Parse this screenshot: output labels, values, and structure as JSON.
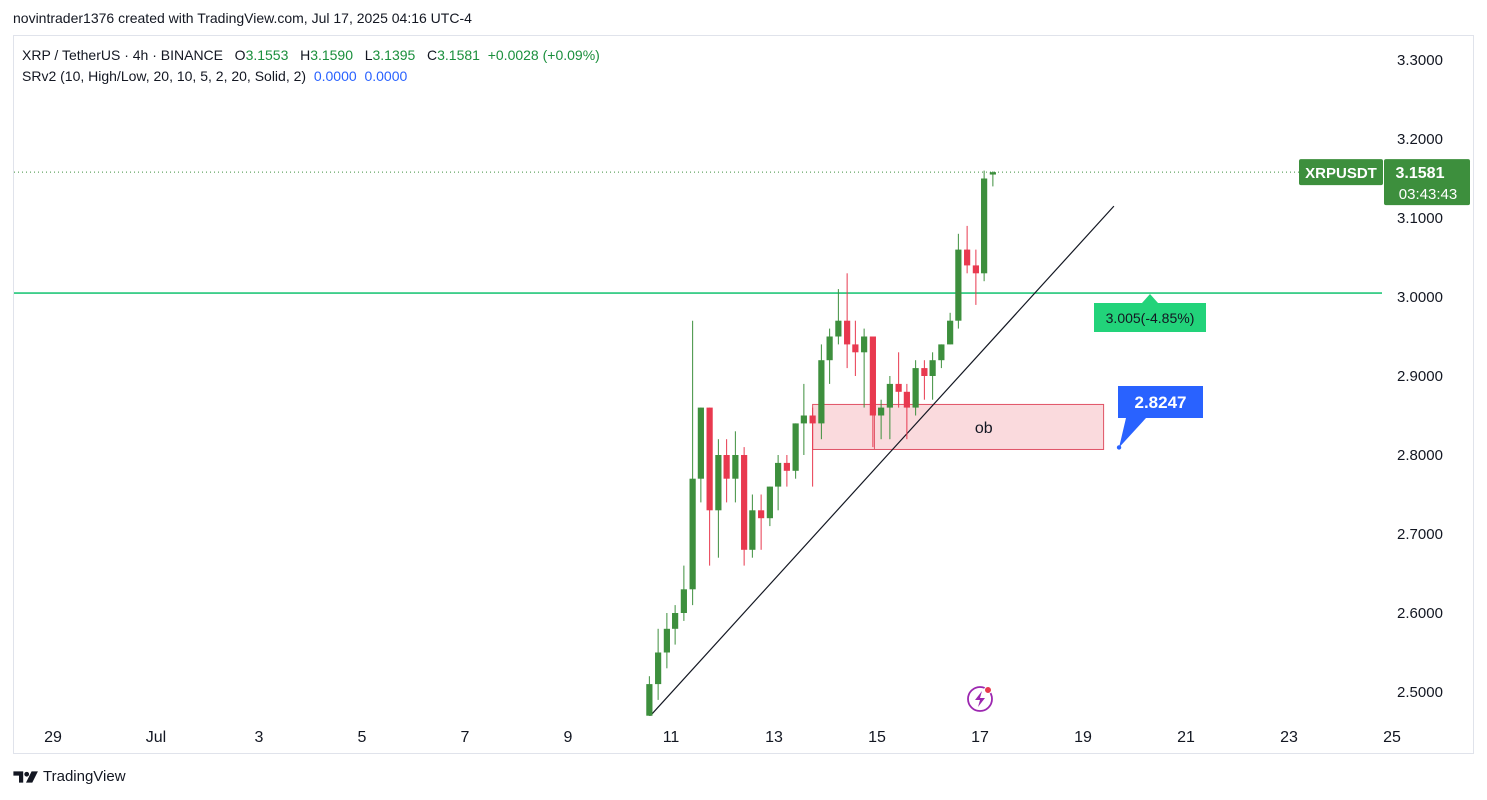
{
  "attribution": "novintrader1376 created with TradingView.com, Jul 17, 2025 04:16 UTC-4",
  "legend": {
    "symbol": "XRP / TetherUS · 4h · BINANCE",
    "o_label": "O",
    "o_value": "3.1553",
    "h_label": "H",
    "h_value": "3.1590",
    "l_label": "L",
    "l_value": "3.1395",
    "c_label": "C",
    "c_value": "3.1581",
    "change": "+0.0028 (+0.09%)",
    "indicator": "SRv2 (10, High/Low, 20, 10, 5, 2, 20, Solid, 2)",
    "ind_value1": "0.0000",
    "ind_value2": "0.0000"
  },
  "colors": {
    "up": "#3d8f3d",
    "down": "#e8394f",
    "level": "#22c77a",
    "ob_fill": "#fadadd",
    "ob_border": "#e05265",
    "price_tag": "#3d8f3d",
    "callout": "#2962ff",
    "level_label": "#22d37a"
  },
  "footer": {
    "brand": "TradingView"
  },
  "chart_data": {
    "type": "candlestick",
    "y_axis": {
      "min": 2.47,
      "max": 3.33,
      "ticks": [
        "3.3000",
        "3.2000",
        "3.1000",
        "3.0000",
        "2.9000",
        "2.8000",
        "2.7000",
        "2.6000",
        "2.5000"
      ],
      "tick_values": [
        3.3,
        3.2,
        3.1,
        3.0,
        2.9,
        2.8,
        2.7,
        2.6,
        2.5
      ]
    },
    "x_axis": {
      "ticks": [
        "29",
        "Jul",
        "3",
        "5",
        "7",
        "9",
        "11",
        "13",
        "15",
        "17",
        "19",
        "21",
        "23",
        "25"
      ],
      "tick_days": [
        -2,
        0,
        2,
        4,
        6,
        8,
        10,
        12,
        14,
        16,
        18,
        20,
        22,
        24
      ],
      "min_day": -2.0,
      "max_day": 24.05
    },
    "candles": [
      {
        "t": 9.58,
        "o": 2.47,
        "h": 2.52,
        "l": 2.46,
        "c": 2.51
      },
      {
        "t": 9.75,
        "o": 2.51,
        "h": 2.58,
        "l": 2.49,
        "c": 2.55
      },
      {
        "t": 9.92,
        "o": 2.55,
        "h": 2.6,
        "l": 2.53,
        "c": 2.58
      },
      {
        "t": 10.08,
        "o": 2.58,
        "h": 2.61,
        "l": 2.56,
        "c": 2.6
      },
      {
        "t": 10.25,
        "o": 2.6,
        "h": 2.66,
        "l": 2.59,
        "c": 2.63
      },
      {
        "t": 10.42,
        "o": 2.63,
        "h": 2.97,
        "l": 2.61,
        "c": 2.77
      },
      {
        "t": 10.58,
        "o": 2.77,
        "h": 2.86,
        "l": 2.74,
        "c": 2.86
      },
      {
        "t": 10.75,
        "o": 2.86,
        "h": 2.86,
        "l": 2.66,
        "c": 2.73
      },
      {
        "t": 10.92,
        "o": 2.73,
        "h": 2.82,
        "l": 2.67,
        "c": 2.8
      },
      {
        "t": 11.08,
        "o": 2.8,
        "h": 2.82,
        "l": 2.74,
        "c": 2.77
      },
      {
        "t": 11.25,
        "o": 2.77,
        "h": 2.83,
        "l": 2.74,
        "c": 2.8
      },
      {
        "t": 11.42,
        "o": 2.8,
        "h": 2.81,
        "l": 2.66,
        "c": 2.68
      },
      {
        "t": 11.58,
        "o": 2.68,
        "h": 2.75,
        "l": 2.67,
        "c": 2.73
      },
      {
        "t": 11.75,
        "o": 2.73,
        "h": 2.75,
        "l": 2.68,
        "c": 2.72
      },
      {
        "t": 11.92,
        "o": 2.72,
        "h": 2.76,
        "l": 2.71,
        "c": 2.76
      },
      {
        "t": 12.08,
        "o": 2.76,
        "h": 2.8,
        "l": 2.73,
        "c": 2.79
      },
      {
        "t": 12.25,
        "o": 2.79,
        "h": 2.8,
        "l": 2.76,
        "c": 2.78
      },
      {
        "t": 12.42,
        "o": 2.78,
        "h": 2.84,
        "l": 2.77,
        "c": 2.84
      },
      {
        "t": 12.58,
        "o": 2.84,
        "h": 2.89,
        "l": 2.8,
        "c": 2.85
      },
      {
        "t": 12.75,
        "o": 2.85,
        "h": 2.86,
        "l": 2.76,
        "c": 2.84
      },
      {
        "t": 12.92,
        "o": 2.84,
        "h": 2.94,
        "l": 2.82,
        "c": 2.92
      },
      {
        "t": 13.08,
        "o": 2.92,
        "h": 2.96,
        "l": 2.89,
        "c": 2.95
      },
      {
        "t": 13.25,
        "o": 2.95,
        "h": 3.01,
        "l": 2.94,
        "c": 2.97
      },
      {
        "t": 13.42,
        "o": 2.97,
        "h": 3.03,
        "l": 2.91,
        "c": 2.94
      },
      {
        "t": 13.58,
        "o": 2.94,
        "h": 2.97,
        "l": 2.9,
        "c": 2.93
      },
      {
        "t": 13.75,
        "o": 2.93,
        "h": 2.96,
        "l": 2.86,
        "c": 2.95
      },
      {
        "t": 13.92,
        "o": 2.95,
        "h": 2.95,
        "l": 2.81,
        "c": 2.85
      },
      {
        "t": 14.08,
        "o": 2.85,
        "h": 2.87,
        "l": 2.82,
        "c": 2.86
      },
      {
        "t": 14.25,
        "o": 2.86,
        "h": 2.9,
        "l": 2.82,
        "c": 2.89
      },
      {
        "t": 14.42,
        "o": 2.89,
        "h": 2.93,
        "l": 2.86,
        "c": 2.88
      },
      {
        "t": 14.58,
        "o": 2.88,
        "h": 2.89,
        "l": 2.82,
        "c": 2.86
      },
      {
        "t": 14.75,
        "o": 2.86,
        "h": 2.92,
        "l": 2.85,
        "c": 2.91
      },
      {
        "t": 14.92,
        "o": 2.91,
        "h": 2.92,
        "l": 2.87,
        "c": 2.9
      },
      {
        "t": 15.08,
        "o": 2.9,
        "h": 2.93,
        "l": 2.87,
        "c": 2.92
      },
      {
        "t": 15.25,
        "o": 2.92,
        "h": 2.94,
        "l": 2.91,
        "c": 2.94
      },
      {
        "t": 15.42,
        "o": 2.94,
        "h": 2.98,
        "l": 2.94,
        "c": 2.97
      },
      {
        "t": 15.58,
        "o": 2.97,
        "h": 3.08,
        "l": 2.96,
        "c": 3.06
      },
      {
        "t": 15.75,
        "o": 3.06,
        "h": 3.09,
        "l": 3.03,
        "c": 3.04
      },
      {
        "t": 15.92,
        "o": 3.04,
        "h": 3.06,
        "l": 2.99,
        "c": 3.03
      },
      {
        "t": 16.08,
        "o": 3.03,
        "h": 3.16,
        "l": 3.02,
        "c": 3.15
      },
      {
        "t": 16.25,
        "o": 3.155,
        "h": 3.159,
        "l": 3.14,
        "c": 3.158
      }
    ],
    "support_level": 3.005,
    "level_label": "3.005(-4.85%)",
    "trendline": {
      "from": {
        "t": 9.6,
        "p": 2.47
      },
      "to": {
        "t": 18.6,
        "p": 3.115
      }
    },
    "order_block": {
      "label": "ob",
      "t_start": 12.75,
      "t_end": 18.4,
      "top": 2.864,
      "bottom": 2.807,
      "inner_t_start": 13.95,
      "inner_t_end": 15.3
    },
    "callout": {
      "value": "2.8247",
      "anchor": {
        "t": 18.7,
        "p": 2.8247
      }
    },
    "last_price": {
      "label": "XRPUSDT",
      "value": "3.1581",
      "countdown": "03:43:43",
      "price": 3.1581
    },
    "axis_marks": [
      "3.3000",
      "3.2000",
      "3.1000",
      "3.0000",
      "2.9000",
      "2.8000",
      "2.7000",
      "2.6000",
      "2.5000"
    ]
  }
}
